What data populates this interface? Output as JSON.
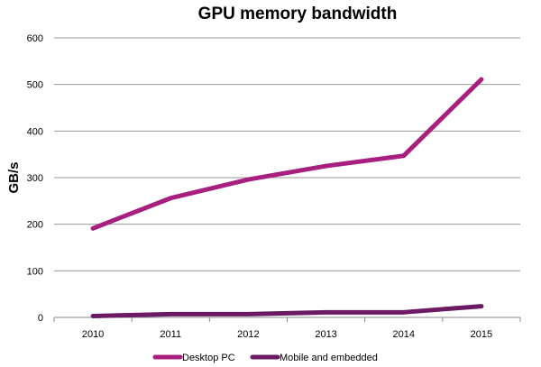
{
  "chart_data": {
    "type": "line",
    "title": "GPU memory bandwidth",
    "xlabel": "",
    "ylabel": "GB/s",
    "categories": [
      "2010",
      "2011",
      "2012",
      "2013",
      "2014",
      "2015"
    ],
    "ylim": [
      0,
      600
    ],
    "yticks": [
      0,
      100,
      200,
      300,
      400,
      500,
      600
    ],
    "grid": true,
    "legend_position": "bottom",
    "series": [
      {
        "name": "Desktop PC",
        "color": "#a8207f",
        "values": [
          191,
          256,
          296,
          325,
          347,
          511
        ]
      },
      {
        "name": "Mobile and embedded",
        "color": "#6b1a63",
        "values": [
          3,
          7,
          7,
          11,
          11,
          24
        ]
      }
    ]
  }
}
